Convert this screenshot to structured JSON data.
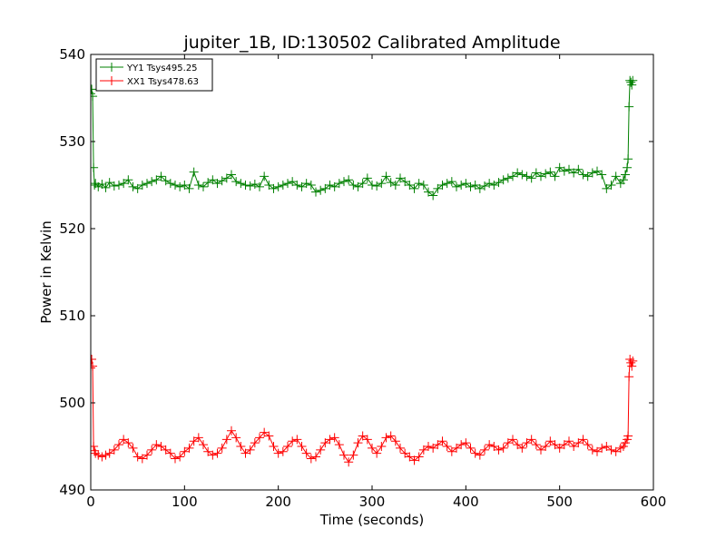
{
  "chart_data": {
    "type": "line",
    "title": "jupiter_1B, ID:130502 Calibrated Amplitude",
    "xlabel": "Time (seconds)",
    "ylabel": "Power in Kelvin",
    "xlim": [
      0,
      600
    ],
    "ylim": [
      490,
      540
    ],
    "xticks": [
      0,
      100,
      200,
      300,
      400,
      500,
      600
    ],
    "yticks": [
      490,
      500,
      510,
      520,
      530,
      540
    ],
    "grid": false,
    "legend_position": "top-left",
    "marker": "+",
    "series": [
      {
        "name": "YY1 Tsys495.25",
        "color": "#008000",
        "x": [
          0,
          1,
          2,
          3,
          4,
          5,
          8,
          12,
          16,
          20,
          25,
          30,
          35,
          40,
          45,
          50,
          55,
          60,
          65,
          70,
          75,
          80,
          85,
          90,
          95,
          100,
          105,
          110,
          115,
          120,
          125,
          130,
          135,
          140,
          145,
          150,
          155,
          160,
          165,
          170,
          175,
          180,
          185,
          190,
          195,
          200,
          205,
          210,
          215,
          220,
          225,
          230,
          235,
          240,
          245,
          250,
          255,
          260,
          265,
          270,
          275,
          280,
          285,
          290,
          295,
          300,
          305,
          310,
          315,
          320,
          325,
          330,
          335,
          340,
          345,
          350,
          355,
          360,
          365,
          370,
          375,
          380,
          385,
          390,
          395,
          400,
          405,
          410,
          415,
          420,
          425,
          430,
          435,
          440,
          445,
          450,
          455,
          460,
          465,
          470,
          475,
          480,
          485,
          490,
          495,
          500,
          505,
          510,
          515,
          520,
          525,
          530,
          535,
          540,
          545,
          550,
          555,
          560,
          565,
          568,
          570,
          572,
          573,
          574,
          575,
          576,
          577,
          578
        ],
        "values": [
          535.5,
          536.0,
          535.2,
          527.0,
          525.0,
          525.2,
          524.8,
          525.1,
          524.7,
          525.3,
          524.9,
          525.0,
          525.2,
          525.6,
          524.8,
          524.6,
          525.0,
          525.2,
          525.4,
          525.6,
          526.0,
          525.5,
          525.2,
          525.0,
          524.8,
          525.0,
          524.6,
          526.5,
          525.0,
          524.8,
          525.3,
          525.6,
          525.2,
          525.5,
          525.8,
          526.2,
          525.4,
          525.2,
          525.0,
          524.9,
          525.1,
          524.8,
          526.0,
          525.0,
          524.6,
          524.8,
          525.0,
          525.2,
          525.4,
          525.0,
          524.8,
          525.2,
          525.0,
          524.2,
          524.4,
          524.6,
          525.0,
          524.8,
          525.2,
          525.4,
          525.6,
          525.0,
          524.8,
          525.2,
          525.8,
          525.0,
          524.9,
          525.2,
          526.0,
          525.3,
          525.0,
          525.8,
          525.4,
          525.0,
          524.6,
          525.2,
          525.0,
          524.2,
          523.8,
          524.6,
          525.0,
          525.2,
          525.4,
          524.8,
          525.0,
          525.2,
          524.8,
          525.0,
          524.6,
          524.9,
          525.2,
          525.0,
          525.3,
          525.6,
          525.8,
          526.0,
          526.4,
          526.2,
          526.0,
          525.8,
          526.4,
          526.0,
          526.3,
          526.5,
          526.0,
          527.0,
          526.6,
          526.8,
          526.4,
          526.8,
          526.2,
          526.0,
          526.4,
          526.6,
          526.2,
          524.6,
          525.0,
          526.0,
          525.2,
          525.6,
          526.2,
          527.0,
          528.0,
          534.0,
          537.0,
          536.8,
          536.5,
          537.0
        ]
      },
      {
        "name": "XX1 Tsys478.63",
        "color": "#ff0000",
        "x": [
          0,
          1,
          2,
          3,
          4,
          5,
          8,
          12,
          16,
          20,
          25,
          30,
          35,
          40,
          45,
          50,
          55,
          60,
          65,
          70,
          75,
          80,
          85,
          90,
          95,
          100,
          105,
          110,
          115,
          120,
          125,
          130,
          135,
          140,
          145,
          150,
          155,
          160,
          165,
          170,
          175,
          180,
          185,
          190,
          195,
          200,
          205,
          210,
          215,
          220,
          225,
          230,
          235,
          240,
          245,
          250,
          255,
          260,
          265,
          270,
          275,
          280,
          285,
          290,
          295,
          300,
          305,
          310,
          315,
          320,
          325,
          330,
          335,
          340,
          345,
          350,
          355,
          360,
          365,
          370,
          375,
          380,
          385,
          390,
          395,
          400,
          405,
          410,
          415,
          420,
          425,
          430,
          435,
          440,
          445,
          450,
          455,
          460,
          465,
          470,
          475,
          480,
          485,
          490,
          495,
          500,
          505,
          510,
          515,
          520,
          525,
          530,
          535,
          540,
          545,
          550,
          555,
          560,
          565,
          568,
          570,
          572,
          573,
          574,
          575,
          576,
          577,
          578
        ],
        "values": [
          504.0,
          505.0,
          504.2,
          495.0,
          494.5,
          494.2,
          494.0,
          493.8,
          494.0,
          494.2,
          494.6,
          495.2,
          495.8,
          495.4,
          494.8,
          493.8,
          493.6,
          494.0,
          494.6,
          495.2,
          495.0,
          494.6,
          494.2,
          493.6,
          493.8,
          494.4,
          494.8,
          495.6,
          496.0,
          495.2,
          494.4,
          494.0,
          494.2,
          494.8,
          495.8,
          496.8,
          496.0,
          495.0,
          494.2,
          494.6,
          495.4,
          496.0,
          496.6,
          496.2,
          495.0,
          494.2,
          494.4,
          495.0,
          495.6,
          495.8,
          495.0,
          494.2,
          493.6,
          493.8,
          494.6,
          495.4,
          495.8,
          496.0,
          495.2,
          494.0,
          493.2,
          494.0,
          495.4,
          496.2,
          495.8,
          494.8,
          494.2,
          495.0,
          496.0,
          496.2,
          495.6,
          494.8,
          494.2,
          493.8,
          493.4,
          493.8,
          494.6,
          495.0,
          494.8,
          495.2,
          495.6,
          495.0,
          494.4,
          494.8,
          495.2,
          495.4,
          494.8,
          494.2,
          494.0,
          494.6,
          495.2,
          495.0,
          494.6,
          494.8,
          495.4,
          495.8,
          495.2,
          494.8,
          495.4,
          495.8,
          495.2,
          494.6,
          495.0,
          495.6,
          495.2,
          494.8,
          495.2,
          495.6,
          495.0,
          495.4,
          495.8,
          495.2,
          494.6,
          494.4,
          494.8,
          495.0,
          494.6,
          494.4,
          494.8,
          495.0,
          495.4,
          495.8,
          496.2,
          503.0,
          505.0,
          504.6,
          504.2,
          504.8
        ]
      }
    ]
  }
}
